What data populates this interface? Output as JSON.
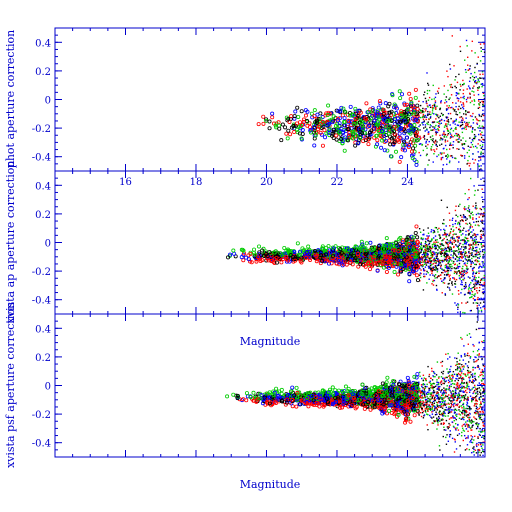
{
  "chart_data": [
    {
      "type": "scatter",
      "ylabel": "phot aperture correction",
      "ylim": [
        -0.5,
        0.5
      ],
      "yticks": [
        "0.4",
        "0.2",
        "0",
        "-0.2",
        "-0.4"
      ],
      "xticks": [
        "16",
        "18",
        "20",
        "22",
        "24"
      ],
      "xlim": [
        14,
        26.2
      ],
      "series_colors": [
        "#000000",
        "#ff0000",
        "#00cc00",
        "#0000ff"
      ],
      "grid": false
    },
    {
      "type": "scatter",
      "ylabel": "xvista ap aperture correction",
      "ylim": [
        -0.5,
        0.5
      ],
      "yticks": [
        "0.4",
        "0.2",
        "0",
        "-0.2",
        "-0.4"
      ],
      "xlabel": "Magnitude",
      "xlim": [
        14,
        26.2
      ],
      "series_colors": [
        "#000000",
        "#ff0000",
        "#00cc00",
        "#0000ff"
      ],
      "grid": false
    },
    {
      "type": "scatter",
      "ylabel": "xvista psf aperture correction",
      "ylim": [
        -0.5,
        0.5
      ],
      "yticks": [
        "0.4",
        "0.2",
        "0",
        "-0.2",
        "-0.4"
      ],
      "xlabel": "Magnitude",
      "xlim": [
        14,
        26.2
      ],
      "series_colors": [
        "#000000",
        "#ff0000",
        "#00cc00",
        "#0000ff"
      ],
      "grid": false
    }
  ]
}
